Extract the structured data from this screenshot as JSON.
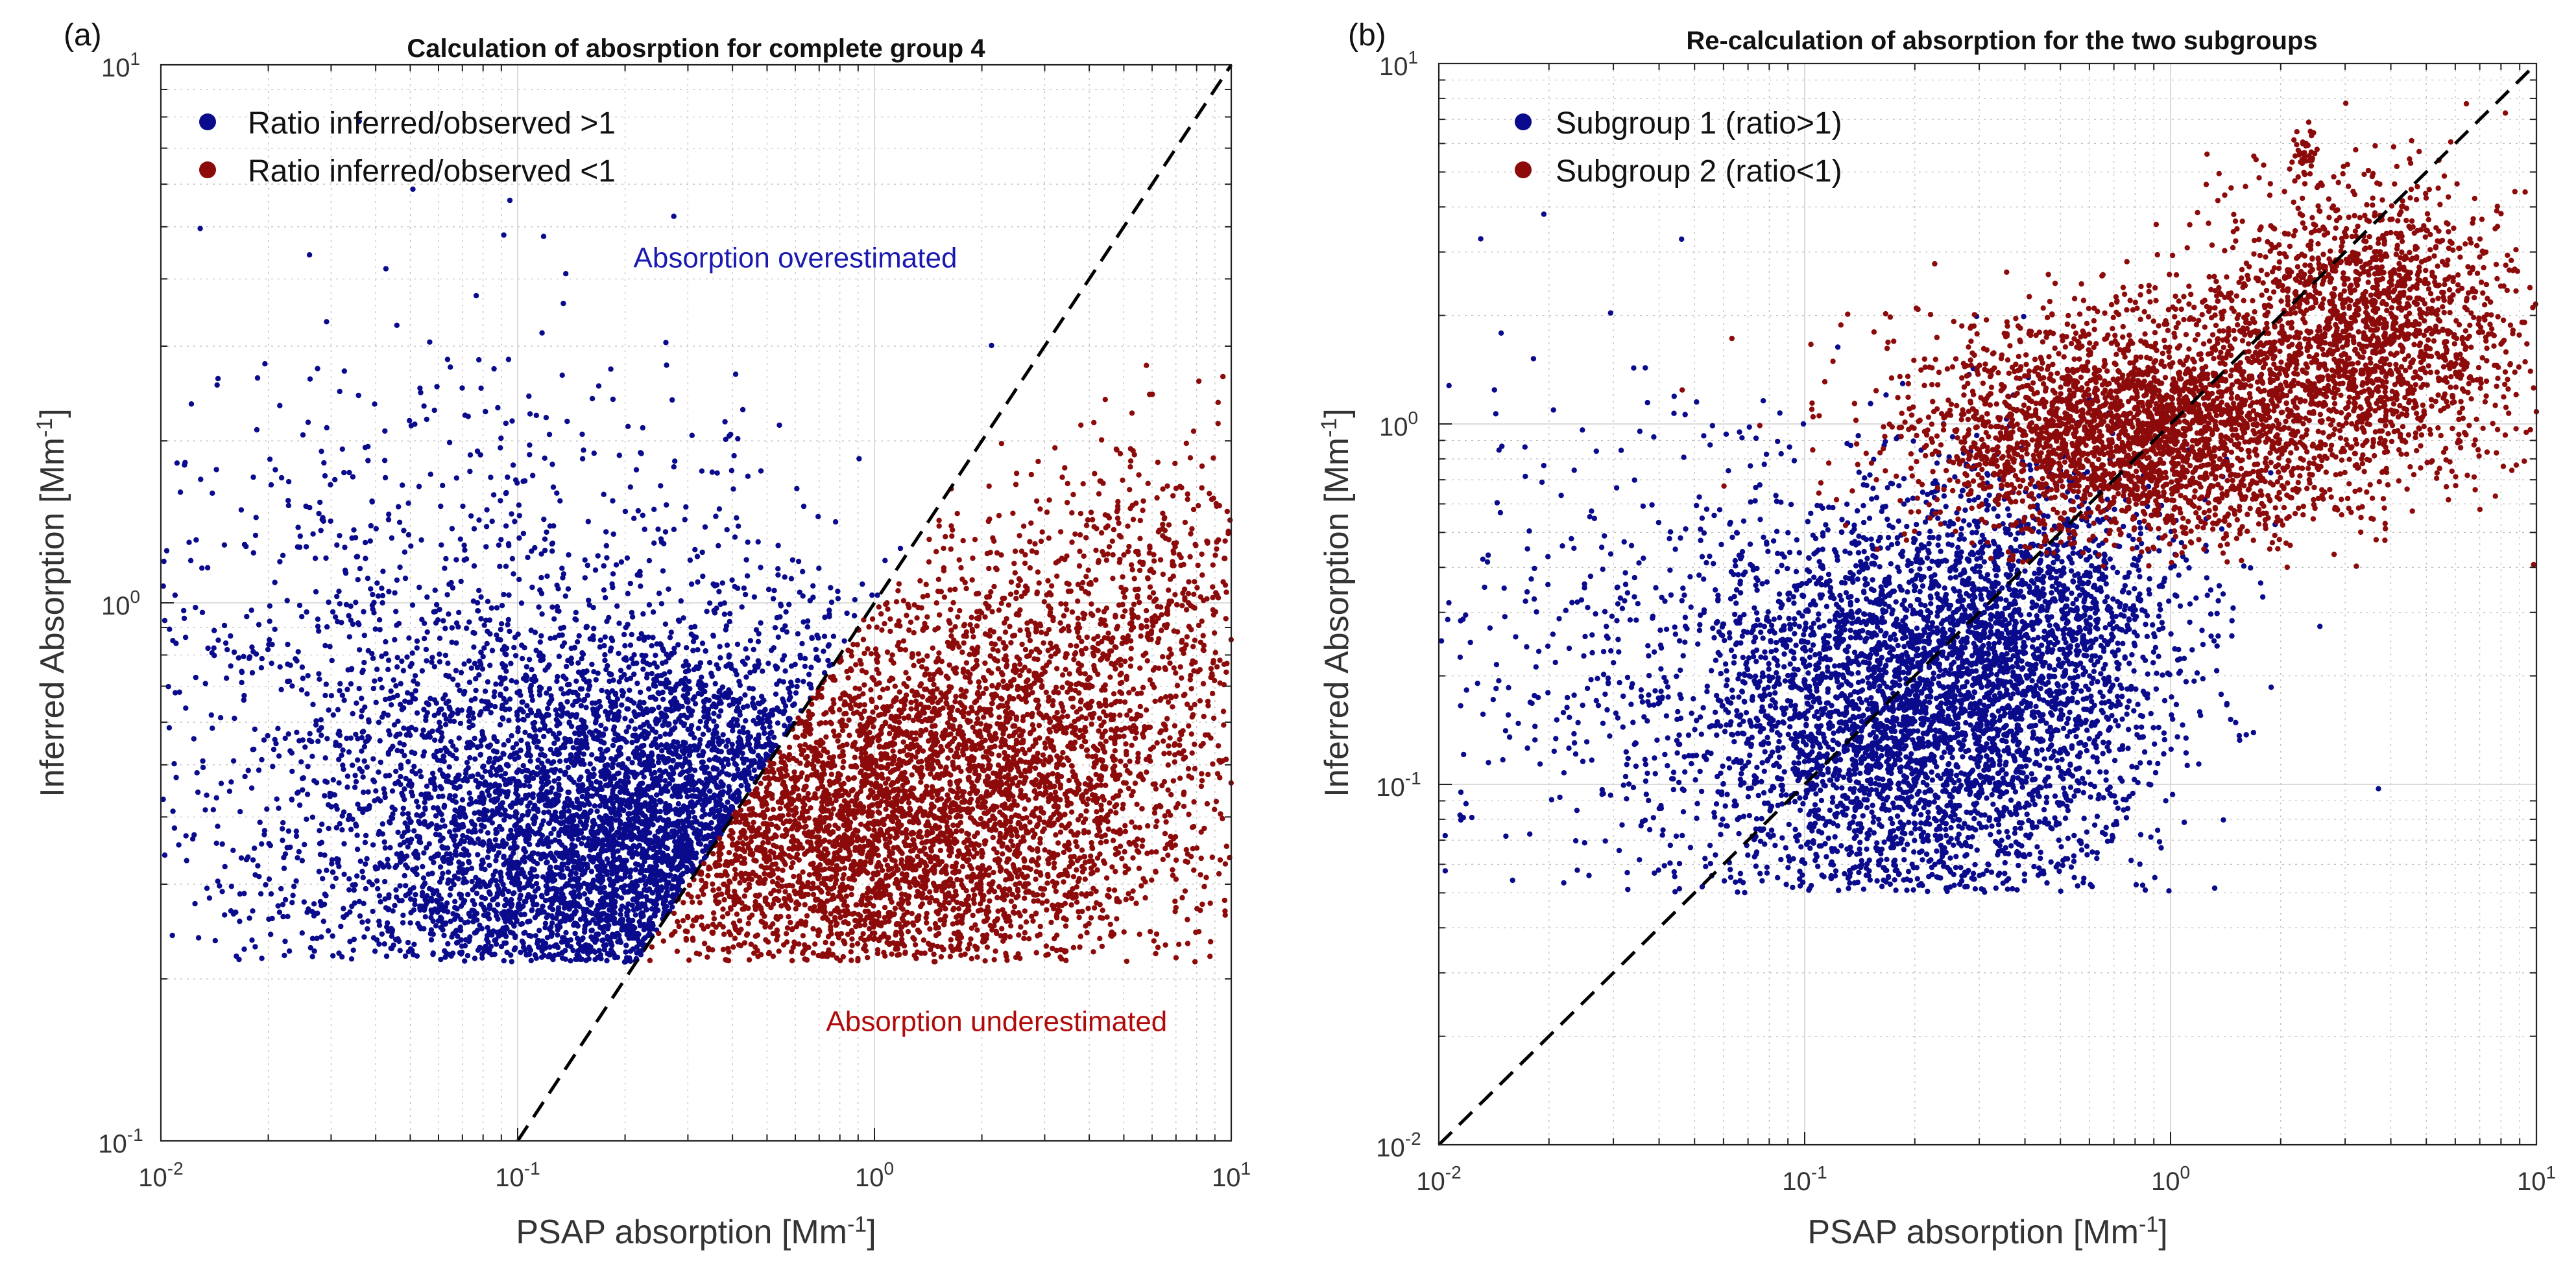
{
  "figure": {
    "colors": {
      "blue": "#0a0a8c",
      "red": "#8c0a0a"
    }
  },
  "chart_data": [
    {
      "type": "scatter",
      "panel_label": "(a)",
      "title": "Calculation of abosrption for complete group 4",
      "xlabel_main": "PSAP absorption  [Mm",
      "xlabel_sup": "-1",
      "xlabel_tail": "]",
      "ylabel_main": "Inferred Absorption [Mm",
      "ylabel_sup": "-1",
      "ylabel_tail": "]",
      "xscale": "log",
      "yscale": "log",
      "xlim": [
        0.01,
        10
      ],
      "ylim": [
        0.1,
        10
      ],
      "grid": true,
      "xticks": [
        {
          "value": 0.01,
          "base": "10",
          "exp": "-2"
        },
        {
          "value": 0.1,
          "base": "10",
          "exp": "-1"
        },
        {
          "value": 1,
          "base": "10",
          "exp": "0"
        },
        {
          "value": 10,
          "base": "10",
          "exp": "1"
        }
      ],
      "yticks": [
        {
          "value": 0.1,
          "base": "10",
          "exp": "-1"
        },
        {
          "value": 1,
          "base": "10",
          "exp": "0"
        },
        {
          "value": 10,
          "base": "10",
          "exp": "1"
        }
      ],
      "reference_line": "1:1",
      "legend_position": "top-left",
      "series": [
        {
          "name": "Ratio inferred/observed >1",
          "color": "#0a0a8c",
          "approx_count": 5500,
          "clusters": [
            {
              "cx": 0.3,
              "cy": 0.33,
              "sx": 0.45,
              "sy": 0.2,
              "n": 3800
            },
            {
              "cx": 0.12,
              "cy": 0.55,
              "sx": 0.45,
              "sy": 0.3,
              "n": 1200
            },
            {
              "cx": 0.03,
              "cy": 0.7,
              "sx": 0.35,
              "sy": 0.35,
              "n": 350
            }
          ],
          "constraint": "y_gt_x",
          "ymin": 0.215
        },
        {
          "name": "Ratio inferred/observed <1",
          "color": "#8c0a0a",
          "approx_count": 5000,
          "clusters": [
            {
              "cx": 0.9,
              "cy": 0.38,
              "sx": 0.4,
              "sy": 0.18,
              "n": 3300
            },
            {
              "cx": 3.0,
              "cy": 0.6,
              "sx": 0.3,
              "sy": 0.2,
              "n": 1400
            },
            {
              "cx": 6.0,
              "cy": 1.1,
              "sx": 0.15,
              "sy": 0.15,
              "n": 300
            }
          ],
          "constraint": "y_lt_x",
          "ymin": 0.215
        }
      ],
      "annotations": [
        {
          "text": "Absorption overestimated",
          "color": "#1a1ab0",
          "x": 0.6,
          "y": 4.2
        },
        {
          "text": "Absorption underestimated",
          "color": "#b00a0a",
          "x": 2.2,
          "y": 0.16
        }
      ]
    },
    {
      "type": "scatter",
      "panel_label": "(b)",
      "title": "Re-calculation of absorption for the two subgroups",
      "xlabel_main": "PSAP absorption [Mm",
      "xlabel_sup": "-1",
      "xlabel_tail": "]",
      "ylabel_main": "Inferred Absorption [Mm",
      "ylabel_sup": "-1",
      "ylabel_tail": "]",
      "xscale": "log",
      "yscale": "log",
      "xlim": [
        0.01,
        10
      ],
      "ylim": [
        0.01,
        10
      ],
      "grid": true,
      "xticks": [
        {
          "value": 0.01,
          "base": "10",
          "exp": "-2"
        },
        {
          "value": 0.1,
          "base": "10",
          "exp": "-1"
        },
        {
          "value": 1,
          "base": "10",
          "exp": "0"
        },
        {
          "value": 10,
          "base": "10",
          "exp": "1"
        }
      ],
      "yticks": [
        {
          "value": 0.01,
          "base": "10",
          "exp": "-2"
        },
        {
          "value": 0.1,
          "base": "10",
          "exp": "-1"
        },
        {
          "value": 1,
          "base": "10",
          "exp": "0"
        },
        {
          "value": 10,
          "base": "10",
          "exp": "1"
        }
      ],
      "reference_line": "1:1",
      "legend_position": "top-left",
      "series": [
        {
          "name": "Subgroup 1 (ratio>1)",
          "color": "#0a0a8c",
          "approx_count": 5500,
          "clusters": [
            {
              "cx": 0.2,
              "cy": 0.15,
              "sx": 0.3,
              "sy": 0.3,
              "n": 3800
            },
            {
              "cx": 0.45,
              "cy": 0.3,
              "sx": 0.22,
              "sy": 0.2,
              "n": 1000
            },
            {
              "cx": 0.04,
              "cy": 0.2,
              "sx": 0.35,
              "sy": 0.4,
              "n": 450
            }
          ],
          "constraint": "none",
          "ymin": 0.05
        },
        {
          "name": "Subgroup 2 (ratio<1)",
          "color": "#8c0a0a",
          "approx_count": 5000,
          "clusters": [
            {
              "cx": 0.8,
              "cy": 0.95,
              "sx": 0.3,
              "sy": 0.16,
              "n": 2900
            },
            {
              "cx": 3.5,
              "cy": 1.8,
              "sx": 0.22,
              "sy": 0.2,
              "n": 1800
            },
            {
              "cx": 2.3,
              "cy": 5.5,
              "sx": 0.02,
              "sy": 0.04,
              "n": 40
            }
          ],
          "constraint": "none",
          "ymin": 0.4
        }
      ],
      "annotations": []
    }
  ]
}
